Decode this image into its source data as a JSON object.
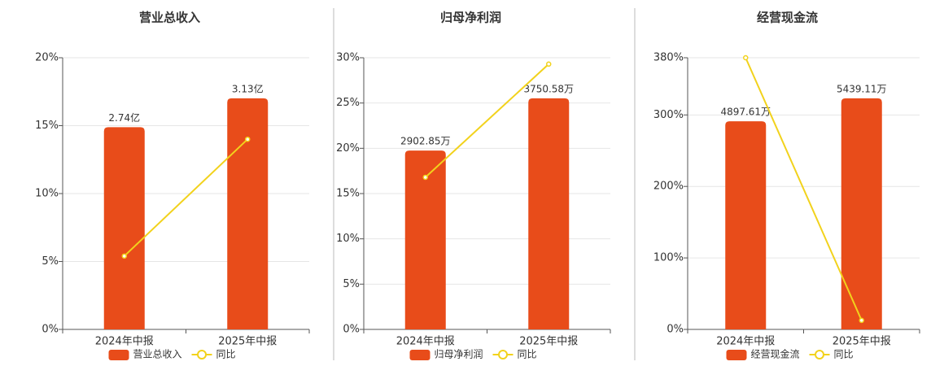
{
  "chart_data": [
    {
      "type": "bar",
      "title": "营业总收入",
      "categories": [
        "2024年中报",
        "2025年中报"
      ],
      "series": [
        {
          "name": "营业总收入",
          "color": "#e84c1a",
          "values": [
            274000000,
            313000000
          ],
          "value_labels": [
            "2.74亿",
            "3.13亿"
          ],
          "axis": "y2"
        },
        {
          "name": "同比",
          "type": "line",
          "color": "#f2d21c",
          "values": [
            5.4,
            14.0
          ]
        }
      ],
      "ylim": [
        0,
        20
      ],
      "yticks": [
        {
          "value": 0,
          "label": "0%"
        },
        {
          "value": 5,
          "label": "5%"
        },
        {
          "value": 10,
          "label": "10%"
        },
        {
          "value": 15,
          "label": "15%"
        },
        {
          "value": 20,
          "label": "20%"
        }
      ],
      "y2lim": [
        0,
        368000000
      ],
      "grid": true
    },
    {
      "type": "bar",
      "title": "归母净利润",
      "categories": [
        "2024年中报",
        "2025年中报"
      ],
      "series": [
        {
          "name": "归母净利润",
          "color": "#e84c1a",
          "values": [
            29028500,
            37505800
          ],
          "value_labels": [
            "2902.85万",
            "3750.58万"
          ],
          "axis": "y2"
        },
        {
          "name": "同比",
          "type": "line",
          "color": "#f2d21c",
          "values": [
            16.8,
            29.3
          ]
        }
      ],
      "ylim": [
        0,
        30
      ],
      "yticks": [
        {
          "value": 0,
          "label": "0%"
        },
        {
          "value": 5,
          "label": "5%"
        },
        {
          "value": 10,
          "label": "10%"
        },
        {
          "value": 15,
          "label": "15%"
        },
        {
          "value": 20,
          "label": "20%"
        },
        {
          "value": 25,
          "label": "25%"
        },
        {
          "value": 30,
          "label": "30%"
        }
      ],
      "y2lim": [
        0,
        44090000
      ],
      "grid": true
    },
    {
      "type": "bar",
      "title": "经营现金流",
      "categories": [
        "2024年中报",
        "2025年中报"
      ],
      "series": [
        {
          "name": "经营现金流",
          "color": "#e84c1a",
          "values": [
            48976100,
            54391100
          ],
          "value_labels": [
            "4897.61万",
            "5439.11万"
          ],
          "axis": "y2"
        },
        {
          "name": "同比",
          "type": "line",
          "color": "#f2d21c",
          "values": [
            380,
            12.6
          ]
        }
      ],
      "ylim": [
        0,
        380
      ],
      "yticks": [
        {
          "value": 0,
          "label": "0%"
        },
        {
          "value": 100,
          "label": "100%"
        },
        {
          "value": 200,
          "label": "200%"
        },
        {
          "value": 300,
          "label": "300%"
        },
        {
          "value": 380,
          "label": "380%"
        }
      ],
      "y2lim": [
        0,
        63930000
      ],
      "grid": true
    }
  ]
}
